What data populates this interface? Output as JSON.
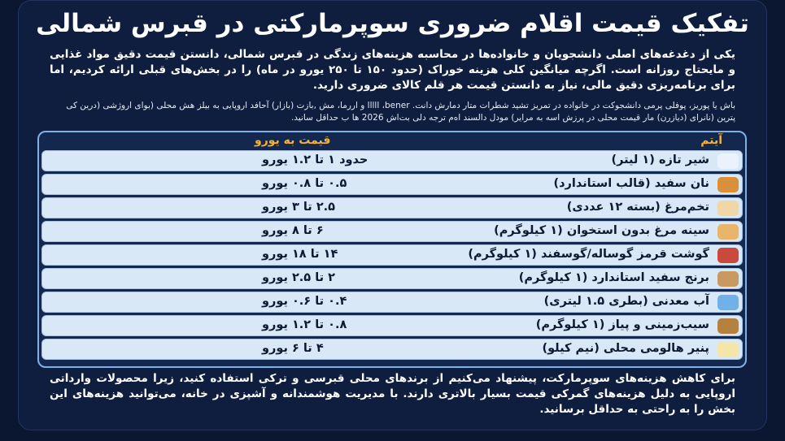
{
  "header": {
    "title": "تفکیک قیمت اقلام ضروری سوپرمارکتی در قبرس شمالی"
  },
  "intro": "یکی از دغدغه‌های اصلی دانشجویان و خانواده‌ها در محاسبه هزینه‌های زندگی در قبرس شمالی، دانستن قیمت دقیق مواد غذایی و مایحتاج روزانه است. اگرچه میانگین کلی هزینه خوراک (حدود ۱۵۰ تا ۲۵۰ یورو در ماه) را در بخش‌های قبلی ارائه کردیم، اما برای برنامه‌ریزی دقیق مالی، نیاز به دانستن قیمت هر قلم کالای ضروری دارید.",
  "note": "باش یا پوریز، پوفلی پرمی دانشجوکت در خانواده در تمریز تشید شطرات متار دمارش دانت. bener، اllll و اررما، مش ,بازت (بازار) آحافد اروپایی به بیلز هش محلی (بوای اروژشی (درین کی پترین (نانرای (دیازرن) مار قیمت محلی در پرزش اسه به مرایر) مودل دالسند اه‌م ترجه دلی بت‌اش 2026 ها ب حداقل سانید.",
  "table": {
    "columns": [
      "آیتم",
      "قیمت به یورو"
    ],
    "rows": [
      [
        "شیر تازه (۱ لیتر)",
        "حدود ۱ تا ۱.۲ یورو"
      ],
      [
        "نان سفید (قالب استاندارد)",
        "۰.۵ تا ۰.۸ یورو"
      ],
      [
        "تخم‌مرغ (بسته ۱۲ عددی)",
        "۲.۵ تا ۳ یورو"
      ],
      [
        "سینه مرغ بدون استخوان (۱ کیلوگرم)",
        "۶ تا ۸ یورو"
      ],
      [
        "گوشت قرمز گوساله/گوسفند (۱ کیلوگرم)",
        "۱۴ تا ۱۸ یورو"
      ],
      [
        "برنج سفید استاندارد (۱ کیلوگرم)",
        "۲ تا ۲.۵ یورو"
      ],
      [
        "آب معدنی (بطری ۱.۵ لیتری)",
        "۰.۴ تا ۰.۶ یورو"
      ],
      [
        "سیب‌زمینی و پیاز (۱ کیلوگرم)",
        "۰.۸ تا ۱.۲ یورو"
      ],
      [
        "پنیر هالومی محلی (نیم کیلو)",
        "۴ تا ۶ یورو"
      ]
    ]
  },
  "footer": "برای کاهش هزینه‌های سوپرمارکت، پیشنهاد می‌کنیم از برندهای محلی قبرسی و ترکی استفاده کنید، زیرا محصولات وارداتی اروپایی به دلیل هزینه‌های گمرکی قیمت بسیار بالاتری دارند. با مدیریت هوشمندانه و آشپزی در خانه، می‌توانید هزینه‌های این بخش را به راحتی به حداقل برسانید."
}
